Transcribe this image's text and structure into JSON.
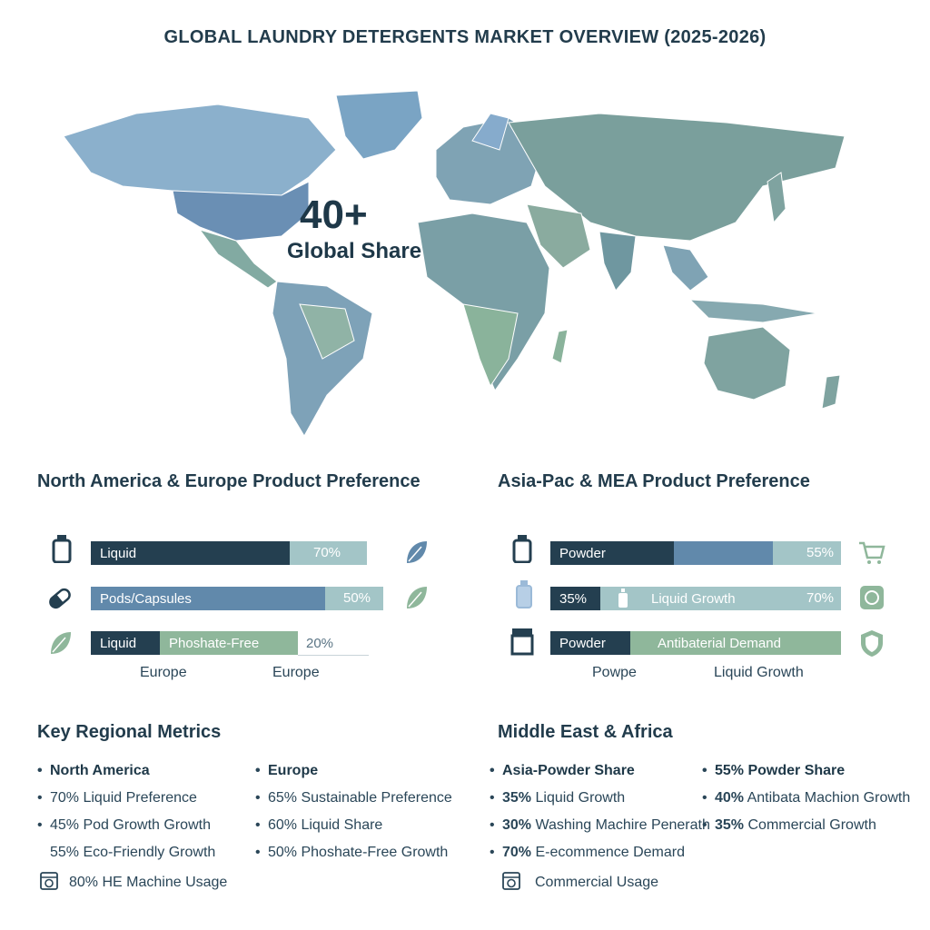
{
  "title": "GLOBAL LAUNDRY DETERGENTS MARKET OVERVIEW (2025-2026)",
  "headline": {
    "value": "40+",
    "label": "Global Share"
  },
  "colors": {
    "navy": "#243f50",
    "steel": "#6189ab",
    "pale_teal": "#a3c5c7",
    "sage": "#8fb79b",
    "map_land": "#7fa3a0",
    "map_na": "#6f97bd"
  },
  "left_panel": {
    "title": "North America & Europe Product Preference",
    "rows": [
      {
        "icon": "bottle-icon",
        "segments": [
          "Liquid"
        ],
        "value_label": "70%",
        "value": 70,
        "side_icon": "leaf-icon"
      },
      {
        "icon": "pill-icon",
        "segments": [
          "Pods/Capsules"
        ],
        "value_label": "50%",
        "value": 50,
        "side_icon": "leaf-icon"
      },
      {
        "icon": "leaf-icon",
        "segments": [
          "Liquid",
          "Phoshate-Free"
        ],
        "value_label": "20%",
        "value": 20,
        "side_icon": ""
      }
    ],
    "axis_labels": [
      "Europe",
      "Europe"
    ]
  },
  "right_panel": {
    "title": "Asia-Pac & MEA Product Preference",
    "rows": [
      {
        "icon": "bottle-icon",
        "segments": [
          "Powder"
        ],
        "value_label": "55%",
        "value": 55,
        "side_icon": "cart-icon"
      },
      {
        "icon": "small-bottle-icon",
        "segments": [
          "35%",
          "Liquid Growth"
        ],
        "value_label": "70%",
        "value": 70,
        "side_icon": "badge-icon"
      },
      {
        "icon": "box-icon",
        "segments": [
          "Powder",
          "Antibaterial Demand"
        ],
        "value_label": "",
        "value": null,
        "side_icon": "shield-icon"
      }
    ],
    "axis_labels": [
      "Powpe",
      "Liquid Growth"
    ]
  },
  "key_metrics": {
    "title": "Key Regional Metrics",
    "col1": {
      "head": "North America",
      "items": [
        "70% Liquid Preference",
        "45% Pod Growth Growth",
        "55% Eco-Friendly Growth",
        "80% HE Machine Usage"
      ]
    },
    "col2": {
      "head": "Europe",
      "items": [
        "65% Sustainable Preference",
        "60% Liquid Share",
        "50% Phoshate-Free Growth"
      ]
    }
  },
  "mea_metrics": {
    "title": "Middle East & Africa",
    "col1": {
      "head": "Asia-Powder Share",
      "items": [
        {
          "num": "35%",
          "text": "Liquid Growth"
        },
        {
          "num": "30%",
          "text": "Washing Machire Penerath"
        },
        {
          "num": "70%",
          "text": "E-ecommence Demard"
        },
        {
          "num": "",
          "text": "Commercial Usage"
        }
      ]
    },
    "col2": {
      "head": "55% Powder Share",
      "items": [
        {
          "num": "40%",
          "text": "Antibata Machion Growth"
        },
        {
          "num": "35%",
          "text": "Commercial Growth"
        }
      ]
    }
  },
  "chart_data": [
    {
      "type": "bar",
      "title": "North America & Europe Product Preference",
      "categories": [
        "Liquid",
        "Pods/Capsules",
        "Liquid Phoshate-Free"
      ],
      "values": [
        70,
        50,
        20
      ],
      "xlabel": "",
      "ylabel": "",
      "ylim": [
        0,
        100
      ]
    },
    {
      "type": "bar",
      "title": "Asia-Pac & MEA Product Preference",
      "categories": [
        "Powder",
        "Liquid Growth",
        "Antibaterial Demand"
      ],
      "values": [
        55,
        70,
        null
      ],
      "xlabel": "",
      "ylabel": "",
      "ylim": [
        0,
        100
      ]
    }
  ]
}
